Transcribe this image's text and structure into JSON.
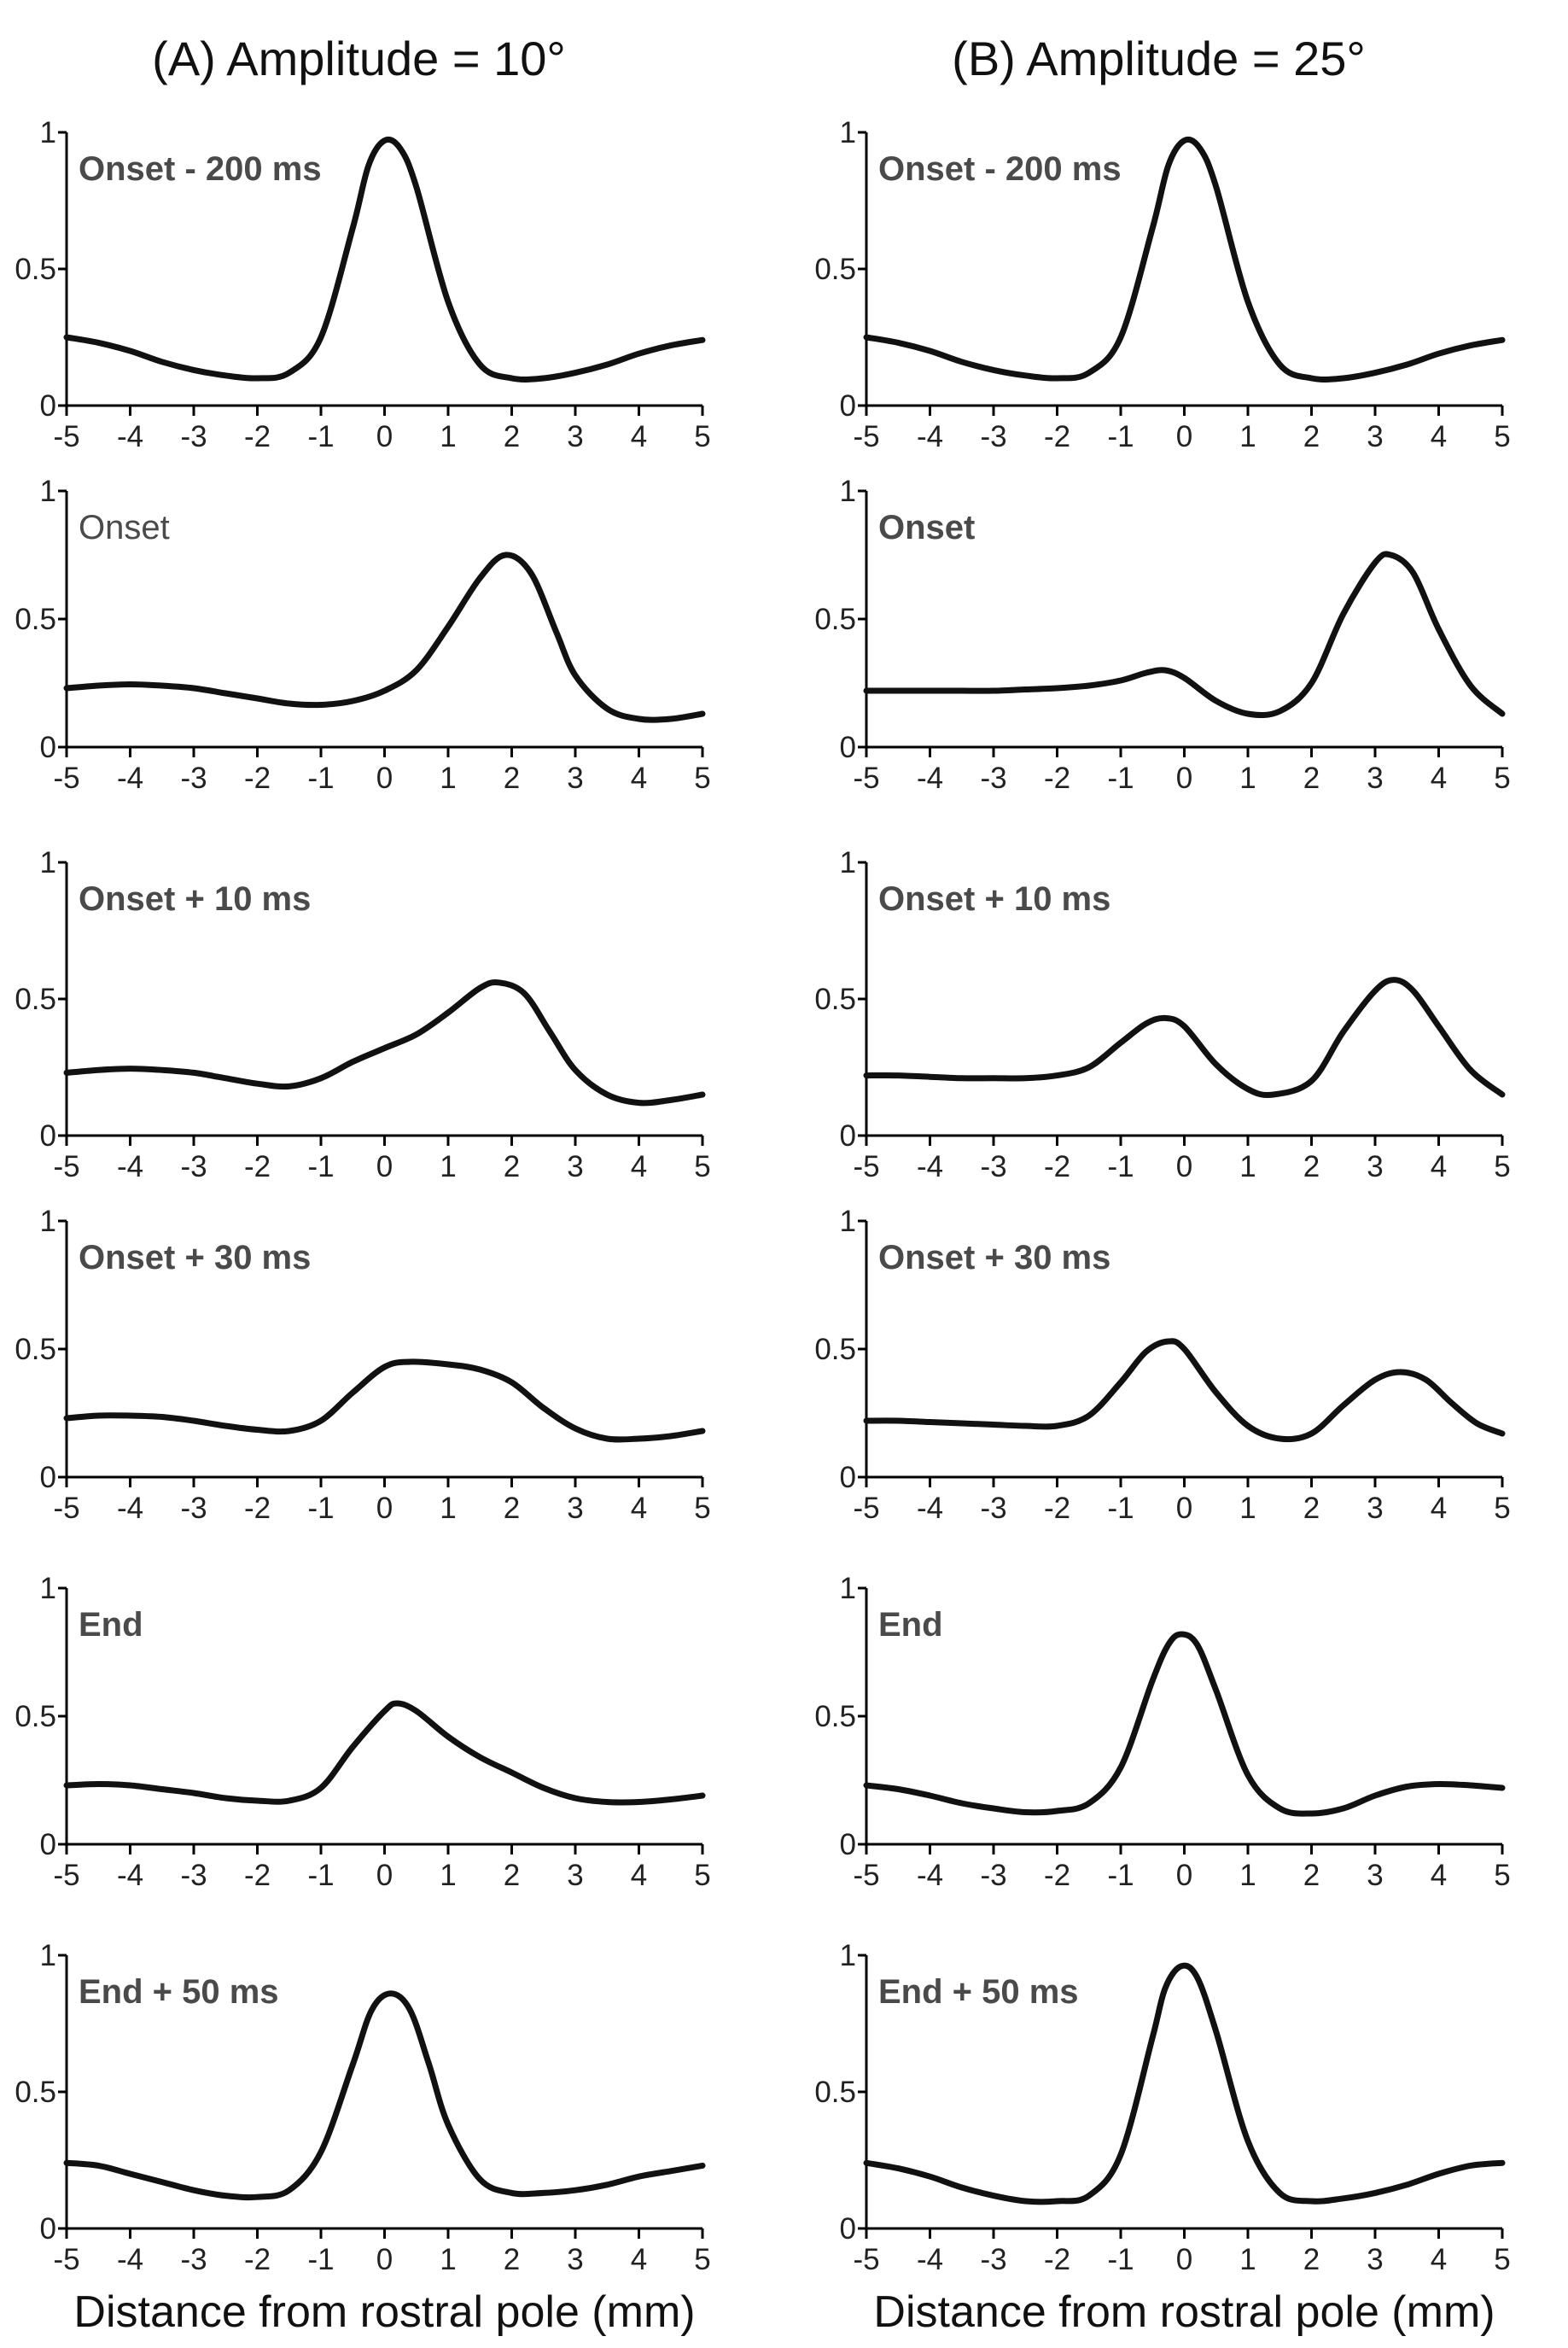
{
  "chart_data": [
    {
      "panel_title": "(A) Amplitude = 10°",
      "xlabel": "Distance from rostral pole (mm)",
      "ylabel": "",
      "panels": [
        {
          "label": "Onset - 200 ms",
          "type": "line",
          "xlim": [
            -5,
            5
          ],
          "ylim": [
            0,
            1
          ],
          "xticks": [
            "-5",
            "-4",
            "-3",
            "-2",
            "-1",
            "0",
            "1",
            "2",
            "3",
            "4",
            "5"
          ],
          "yticks": [
            "0",
            "0.5",
            "1"
          ],
          "x": [
            -5,
            -4.5,
            -4,
            -3.5,
            -3,
            -2.5,
            -2,
            -1.5,
            -1,
            -0.5,
            -0.25,
            0,
            0.25,
            0.5,
            1,
            1.5,
            2,
            2.5,
            3,
            3.5,
            4,
            4.5,
            5
          ],
          "y": [
            0.25,
            0.23,
            0.2,
            0.16,
            0.13,
            0.11,
            0.1,
            0.12,
            0.25,
            0.65,
            0.88,
            0.97,
            0.94,
            0.8,
            0.38,
            0.15,
            0.1,
            0.1,
            0.12,
            0.15,
            0.19,
            0.22,
            0.24
          ]
        },
        {
          "label": "Onset",
          "type": "line",
          "xlim": [
            -5,
            5
          ],
          "ylim": [
            0,
            1
          ],
          "xticks": [
            "-5",
            "-4",
            "-3",
            "-2",
            "-1",
            "0",
            "1",
            "2",
            "3",
            "4",
            "5"
          ],
          "yticks": [
            "0",
            "0.5",
            "1"
          ],
          "x": [
            -5,
            -4.5,
            -4,
            -3.5,
            -3,
            -2.5,
            -2,
            -1.5,
            -1,
            -0.5,
            0,
            0.5,
            1,
            1.5,
            1.9,
            2.3,
            2.7,
            3,
            3.5,
            4,
            4.5,
            5
          ],
          "y": [
            0.23,
            0.24,
            0.245,
            0.24,
            0.23,
            0.21,
            0.19,
            0.17,
            0.165,
            0.18,
            0.22,
            0.3,
            0.47,
            0.66,
            0.75,
            0.68,
            0.45,
            0.28,
            0.15,
            0.11,
            0.11,
            0.13
          ]
        },
        {
          "label": "Onset + 10 ms",
          "type": "line",
          "xlim": [
            -5,
            5
          ],
          "ylim": [
            0,
            1
          ],
          "xticks": [
            "-5",
            "-4",
            "-3",
            "-2",
            "-1",
            "0",
            "1",
            "2",
            "3",
            "4",
            "5"
          ],
          "yticks": [
            "0",
            "0.5",
            "1"
          ],
          "x": [
            -5,
            -4.5,
            -4,
            -3.5,
            -3,
            -2.5,
            -2,
            -1.5,
            -1,
            -0.5,
            0,
            0.5,
            1,
            1.5,
            1.8,
            2.2,
            2.6,
            3,
            3.5,
            4,
            4.5,
            5
          ],
          "y": [
            0.23,
            0.24,
            0.245,
            0.24,
            0.23,
            0.21,
            0.19,
            0.18,
            0.21,
            0.27,
            0.32,
            0.37,
            0.45,
            0.54,
            0.56,
            0.52,
            0.38,
            0.24,
            0.15,
            0.12,
            0.13,
            0.15
          ]
        },
        {
          "label": "Onset + 30 ms",
          "type": "line",
          "xlim": [
            -5,
            5
          ],
          "ylim": [
            0,
            1
          ],
          "xticks": [
            "-5",
            "-4",
            "-3",
            "-2",
            "-1",
            "0",
            "1",
            "2",
            "3",
            "4",
            "5"
          ],
          "yticks": [
            "0",
            "0.5",
            "1"
          ],
          "x": [
            -5,
            -4.5,
            -4,
            -3.5,
            -3,
            -2.5,
            -2,
            -1.5,
            -1,
            -0.5,
            0,
            0.4,
            1,
            1.5,
            2,
            2.5,
            3,
            3.5,
            4,
            4.5,
            5
          ],
          "y": [
            0.23,
            0.24,
            0.24,
            0.235,
            0.22,
            0.2,
            0.185,
            0.18,
            0.22,
            0.33,
            0.43,
            0.45,
            0.44,
            0.42,
            0.37,
            0.27,
            0.19,
            0.15,
            0.15,
            0.16,
            0.18
          ]
        },
        {
          "label": "End",
          "type": "line",
          "xlim": [
            -5,
            5
          ],
          "ylim": [
            0,
            1
          ],
          "xticks": [
            "-5",
            "-4",
            "-3",
            "-2",
            "-1",
            "0",
            "1",
            "2",
            "3",
            "4",
            "5"
          ],
          "yticks": [
            "0",
            "0.5",
            "1"
          ],
          "x": [
            -5,
            -4.5,
            -4,
            -3.5,
            -3,
            -2.5,
            -2,
            -1.5,
            -1,
            -0.5,
            0,
            0.2,
            0.5,
            1,
            1.5,
            2,
            2.5,
            3,
            3.5,
            4,
            4.5,
            5
          ],
          "y": [
            0.23,
            0.235,
            0.23,
            0.215,
            0.2,
            0.18,
            0.17,
            0.17,
            0.22,
            0.38,
            0.52,
            0.55,
            0.52,
            0.42,
            0.34,
            0.28,
            0.22,
            0.18,
            0.165,
            0.165,
            0.175,
            0.19
          ]
        },
        {
          "label": "End + 50 ms",
          "type": "line",
          "xlim": [
            -5,
            5
          ],
          "ylim": [
            0,
            1
          ],
          "xticks": [
            "-5",
            "-4",
            "-3",
            "-2",
            "-1",
            "0",
            "1",
            "2",
            "3",
            "4",
            "5"
          ],
          "yticks": [
            "0",
            "0.5",
            "1"
          ],
          "x": [
            -5,
            -4.5,
            -4,
            -3.5,
            -3,
            -2.5,
            -2,
            -1.5,
            -1,
            -0.5,
            -0.2,
            0.1,
            0.4,
            0.7,
            1,
            1.5,
            2,
            2.5,
            3,
            3.5,
            4,
            4.5,
            5
          ],
          "y": [
            0.24,
            0.23,
            0.2,
            0.17,
            0.14,
            0.12,
            0.115,
            0.14,
            0.28,
            0.6,
            0.8,
            0.86,
            0.8,
            0.6,
            0.38,
            0.18,
            0.13,
            0.13,
            0.14,
            0.16,
            0.19,
            0.21,
            0.23
          ]
        }
      ]
    },
    {
      "panel_title": "(B) Amplitude = 25°",
      "xlabel": "Distance from rostral pole (mm)",
      "ylabel": "",
      "panels": [
        {
          "label": "Onset - 200 ms",
          "type": "line",
          "xlim": [
            -5,
            5
          ],
          "ylim": [
            0,
            1
          ],
          "xticks": [
            "-5",
            "-4",
            "-3",
            "-2",
            "-1",
            "0",
            "1",
            "2",
            "3",
            "4",
            "5"
          ],
          "yticks": [
            "0",
            "0.5",
            "1"
          ],
          "x": [
            -5,
            -4.5,
            -4,
            -3.5,
            -3,
            -2.5,
            -2,
            -1.5,
            -1,
            -0.5,
            -0.25,
            0,
            0.25,
            0.5,
            1,
            1.5,
            2,
            2.5,
            3,
            3.5,
            4,
            4.5,
            5
          ],
          "y": [
            0.25,
            0.23,
            0.2,
            0.16,
            0.13,
            0.11,
            0.1,
            0.12,
            0.25,
            0.65,
            0.88,
            0.97,
            0.94,
            0.8,
            0.38,
            0.15,
            0.1,
            0.1,
            0.12,
            0.15,
            0.19,
            0.22,
            0.24
          ]
        },
        {
          "label": "Onset",
          "type": "line",
          "xlim": [
            -5,
            5
          ],
          "ylim": [
            0,
            1
          ],
          "xticks": [
            "-5",
            "-4",
            "-3",
            "-2",
            "-1",
            "0",
            "1",
            "2",
            "3",
            "4",
            "5"
          ],
          "yticks": [
            "0",
            "0.5",
            "1"
          ],
          "x": [
            -5,
            -4.5,
            -4,
            -3.5,
            -3,
            -2.5,
            -2,
            -1.5,
            -1,
            -0.6,
            -0.3,
            0,
            0.5,
            1,
            1.5,
            2,
            2.5,
            3,
            3.25,
            3.6,
            4,
            4.5,
            5
          ],
          "y": [
            0.22,
            0.22,
            0.22,
            0.22,
            0.22,
            0.225,
            0.23,
            0.24,
            0.26,
            0.29,
            0.3,
            0.27,
            0.18,
            0.13,
            0.14,
            0.25,
            0.52,
            0.72,
            0.75,
            0.68,
            0.46,
            0.24,
            0.13
          ]
        },
        {
          "label": "Onset + 10 ms",
          "type": "line",
          "xlim": [
            -5,
            5
          ],
          "ylim": [
            0,
            1
          ],
          "xticks": [
            "-5",
            "-4",
            "-3",
            "-2",
            "-1",
            "0",
            "1",
            "2",
            "3",
            "4",
            "5"
          ],
          "yticks": [
            "0",
            "0.5",
            "1"
          ],
          "x": [
            -5,
            -4.5,
            -4,
            -3.5,
            -3,
            -2.5,
            -2,
            -1.5,
            -1,
            -0.6,
            -0.3,
            0,
            0.5,
            1,
            1.4,
            2,
            2.5,
            3,
            3.3,
            3.6,
            4,
            4.5,
            5
          ],
          "y": [
            0.22,
            0.22,
            0.215,
            0.21,
            0.21,
            0.21,
            0.22,
            0.25,
            0.34,
            0.41,
            0.43,
            0.4,
            0.26,
            0.17,
            0.15,
            0.2,
            0.38,
            0.53,
            0.57,
            0.53,
            0.4,
            0.24,
            0.15
          ]
        },
        {
          "label": "Onset + 30 ms",
          "type": "line",
          "xlim": [
            -5,
            5
          ],
          "ylim": [
            0,
            1
          ],
          "xticks": [
            "-5",
            "-4",
            "-3",
            "-2",
            "-1",
            "0",
            "1",
            "2",
            "3",
            "4",
            "5"
          ],
          "yticks": [
            "0",
            "0.5",
            "1"
          ],
          "x": [
            -5,
            -4.5,
            -4,
            -3.5,
            -3,
            -2.5,
            -2,
            -1.5,
            -1,
            -0.6,
            -0.25,
            0,
            0.5,
            1,
            1.5,
            2,
            2.5,
            3,
            3.4,
            3.8,
            4.2,
            4.6,
            5
          ],
          "y": [
            0.22,
            0.22,
            0.215,
            0.21,
            0.205,
            0.2,
            0.2,
            0.24,
            0.37,
            0.49,
            0.53,
            0.5,
            0.33,
            0.2,
            0.15,
            0.17,
            0.28,
            0.38,
            0.41,
            0.38,
            0.29,
            0.21,
            0.17
          ]
        },
        {
          "label": "End",
          "type": "line",
          "xlim": [
            -5,
            5
          ],
          "ylim": [
            0,
            1
          ],
          "xticks": [
            "-5",
            "-4",
            "-3",
            "-2",
            "-1",
            "0",
            "1",
            "2",
            "3",
            "4",
            "5"
          ],
          "yticks": [
            "0",
            "0.5",
            "1"
          ],
          "x": [
            -5,
            -4.5,
            -4,
            -3.5,
            -3,
            -2.5,
            -2,
            -1.5,
            -1,
            -0.5,
            -0.25,
            -0.05,
            0.2,
            0.5,
            1,
            1.5,
            2,
            2.5,
            3,
            3.5,
            4,
            4.5,
            5
          ],
          "y": [
            0.23,
            0.215,
            0.19,
            0.16,
            0.14,
            0.125,
            0.13,
            0.16,
            0.3,
            0.64,
            0.78,
            0.82,
            0.78,
            0.6,
            0.27,
            0.14,
            0.12,
            0.14,
            0.19,
            0.225,
            0.235,
            0.23,
            0.22
          ]
        },
        {
          "label": "End + 50 ms",
          "type": "line",
          "xlim": [
            -5,
            5
          ],
          "ylim": [
            0,
            1
          ],
          "xticks": [
            "-5",
            "-4",
            "-3",
            "-2",
            "-1",
            "0",
            "1",
            "2",
            "3",
            "4",
            "5"
          ],
          "yticks": [
            "0",
            "0.5",
            "1"
          ],
          "x": [
            -5,
            -4.5,
            -4,
            -3.5,
            -3,
            -2.5,
            -2,
            -1.5,
            -1,
            -0.5,
            -0.3,
            -0.05,
            0.2,
            0.5,
            1,
            1.5,
            2,
            2.5,
            3,
            3.5,
            4,
            4.5,
            5
          ],
          "y": [
            0.24,
            0.22,
            0.19,
            0.15,
            0.12,
            0.1,
            0.1,
            0.12,
            0.27,
            0.7,
            0.88,
            0.96,
            0.92,
            0.72,
            0.32,
            0.13,
            0.1,
            0.11,
            0.13,
            0.16,
            0.2,
            0.23,
            0.24
          ]
        }
      ]
    }
  ]
}
